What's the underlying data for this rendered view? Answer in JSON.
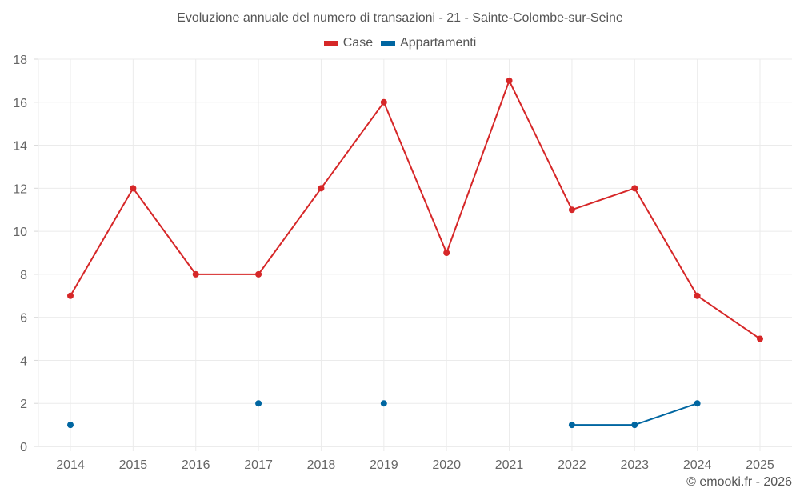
{
  "title": "Evoluzione annuale del numero di transazioni - 21 - Sainte-Colombe-sur-Seine",
  "legend": [
    {
      "label": "Case",
      "color": "#d62728"
    },
    {
      "label": "Appartamenti",
      "color": "#0066a1"
    }
  ],
  "credit": "© emooki.fr - 2026",
  "chart_data": {
    "type": "line",
    "title": "Evoluzione annuale del numero di transazioni - 21 - Sainte-Colombe-sur-Seine",
    "xlabel": "",
    "ylabel": "",
    "categories": [
      "2014",
      "2015",
      "2016",
      "2017",
      "2018",
      "2019",
      "2020",
      "2021",
      "2022",
      "2023",
      "2024",
      "2025"
    ],
    "series": [
      {
        "name": "Case",
        "color": "#d62728",
        "values": [
          7,
          12,
          8,
          8,
          12,
          16,
          9,
          17,
          11,
          12,
          7,
          5
        ]
      },
      {
        "name": "Appartamenti",
        "color": "#0066a1",
        "values": [
          1,
          null,
          null,
          2,
          null,
          2,
          null,
          null,
          1,
          1,
          2,
          null
        ]
      }
    ],
    "ylim": [
      0,
      18
    ],
    "yticks": [
      0,
      2,
      4,
      6,
      8,
      10,
      12,
      14,
      16,
      18
    ],
    "grid": true,
    "legend_position": "top"
  }
}
